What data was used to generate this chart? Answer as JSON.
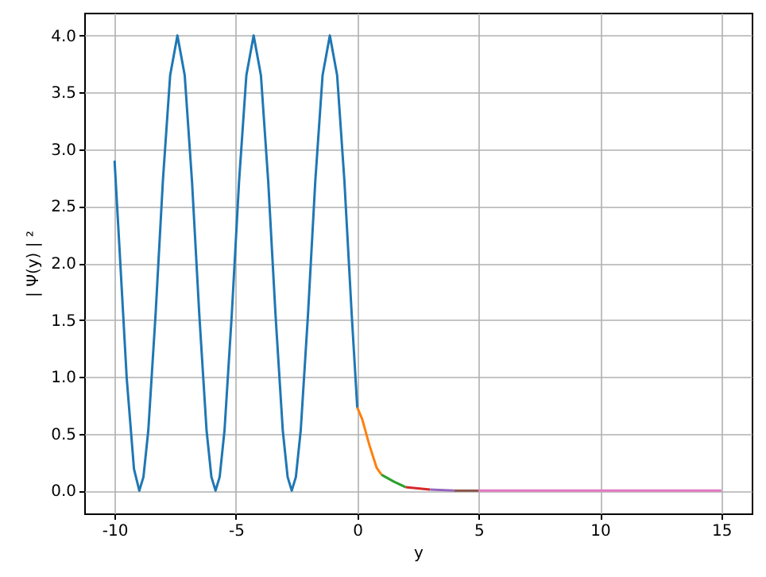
{
  "chart_data": {
    "type": "line",
    "xlabel": "y",
    "ylabel": "| Ψ(y) | ²",
    "xlim": [
      -11.25,
      16.25
    ],
    "ylim": [
      -0.2,
      4.2
    ],
    "xticks": [
      -10,
      -5,
      0,
      5,
      10,
      15
    ],
    "yticks": [
      {
        "value": 0,
        "label": "0.0"
      },
      {
        "value": 0.5,
        "label": "0.5"
      },
      {
        "value": 1,
        "label": "1.0"
      },
      {
        "value": 1.5,
        "label": "1.5"
      },
      {
        "value": 2,
        "label": "2.0"
      },
      {
        "value": 2.5,
        "label": "2.5"
      },
      {
        "value": 3,
        "label": "3.0"
      },
      {
        "value": 3.5,
        "label": "3.5"
      },
      {
        "value": 4,
        "label": "4.0"
      }
    ],
    "grid": true,
    "series": [
      {
        "color": "#1f77b4",
        "x": [
          -10,
          -9.8,
          -9.5,
          -9.2,
          -8.98,
          -8.81,
          -8.61,
          -8.31,
          -8.01,
          -7.71,
          -7.41,
          -7.11,
          -6.81,
          -6.51,
          -6.21,
          -6.01,
          -5.84,
          -5.67,
          -5.47,
          -5.17,
          -4.87,
          -4.57,
          -4.27,
          -3.97,
          -3.67,
          -3.37,
          -3.07,
          -2.87,
          -2.7,
          -2.53,
          -2.33,
          -2.03,
          -1.73,
          -1.43,
          -1.13,
          -0.83,
          -0.53,
          -0.23,
          0
        ],
        "values": [
          2.9,
          2.14,
          0.99,
          0.19,
          0,
          0.12,
          0.53,
          1.55,
          2.72,
          3.65,
          4,
          3.65,
          2.72,
          1.55,
          0.53,
          0.12,
          0,
          0.12,
          0.53,
          1.55,
          2.72,
          3.65,
          4,
          3.65,
          2.72,
          1.55,
          0.53,
          0.12,
          0,
          0.12,
          0.53,
          1.55,
          2.72,
          3.65,
          4,
          3.65,
          2.72,
          1.55,
          0.73
        ]
      },
      {
        "color": "#ff7f0e",
        "x": [
          0,
          0.2,
          0.5,
          0.8,
          1
        ],
        "values": [
          0.73,
          0.63,
          0.4,
          0.2,
          0.14
        ]
      },
      {
        "color": "#2ca02c",
        "x": [
          1,
          1.5,
          2
        ],
        "values": [
          0.14,
          0.08,
          0.03
        ]
      },
      {
        "color": "#d62728",
        "x": [
          2,
          3
        ],
        "values": [
          0.03,
          0.01
        ]
      },
      {
        "color": "#9467bd",
        "x": [
          3,
          4
        ],
        "values": [
          0.01,
          0
        ]
      },
      {
        "color": "#8c564b",
        "x": [
          4,
          5
        ],
        "values": [
          0,
          0
        ]
      },
      {
        "color": "#e377c2",
        "x": [
          5,
          15
        ],
        "values": [
          0,
          0
        ]
      }
    ]
  }
}
